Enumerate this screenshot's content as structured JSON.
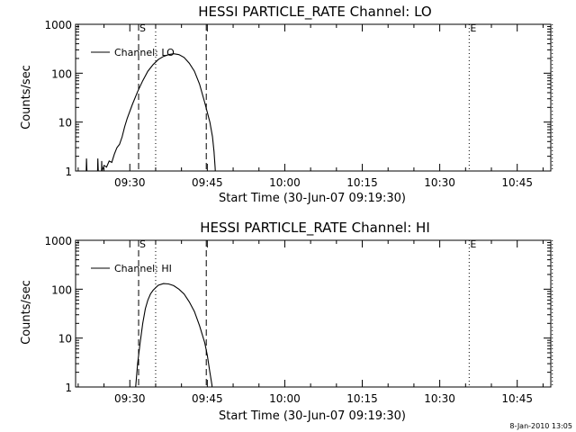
{
  "footer": {
    "timestamp": "8-Jan-2010 13:05"
  },
  "chart_data": [
    {
      "type": "line",
      "title": "HESSI PARTICLE_RATE Channel: LO",
      "xlabel": "Start Time (30-Jun-07 09:19:30)",
      "ylabel": "Counts/sec",
      "yscale": "log",
      "ylim": [
        1,
        1000
      ],
      "xlim_minutes": [
        0,
        92
      ],
      "x_ticks": [
        {
          "t": 10.5,
          "label": "09:30"
        },
        {
          "t": 25.5,
          "label": "09:45"
        },
        {
          "t": 40.5,
          "label": "10:00"
        },
        {
          "t": 55.5,
          "label": "10:15"
        },
        {
          "t": 70.5,
          "label": "10:30"
        },
        {
          "t": 85.5,
          "label": "10:45"
        }
      ],
      "y_ticks": [
        {
          "v": 1,
          "label": "1"
        },
        {
          "v": 10,
          "label": "10"
        },
        {
          "v": 100,
          "label": "100"
        },
        {
          "v": 1000,
          "label": "1000"
        }
      ],
      "markers": [
        {
          "t": 12.2,
          "style": "dashed",
          "label": "S"
        },
        {
          "t": 15.5,
          "style": "dotted",
          "label": ""
        },
        {
          "t": 25.3,
          "style": "dashed",
          "label": ""
        },
        {
          "t": 76.2,
          "style": "dotted",
          "label": "E"
        },
        {
          "t": 92.3,
          "style": "dotted",
          "label": ""
        }
      ],
      "legend": {
        "label": "Channel: LO",
        "position": "top-left"
      },
      "series": [
        {
          "name": "Channel: LO",
          "points": [
            [
              2.0,
              0.5
            ],
            [
              2.1,
              1.8
            ],
            [
              2.3,
              0.5
            ],
            [
              4.2,
              0.5
            ],
            [
              4.3,
              1.8
            ],
            [
              4.5,
              0.5
            ],
            [
              5.0,
              0.5
            ],
            [
              5.05,
              1.6
            ],
            [
              5.1,
              1.0
            ],
            [
              5.5,
              1.3
            ],
            [
              6.0,
              1.2
            ],
            [
              6.5,
              1.6
            ],
            [
              7.0,
              1.5
            ],
            [
              7.5,
              2.2
            ],
            [
              8.0,
              3.0
            ],
            [
              8.5,
              3.5
            ],
            [
              9.0,
              5.0
            ],
            [
              9.5,
              8.0
            ],
            [
              10.0,
              12
            ],
            [
              11.0,
              23
            ],
            [
              12.0,
              42
            ],
            [
              13.0,
              70
            ],
            [
              14.0,
              110
            ],
            [
              15.0,
              150
            ],
            [
              16.0,
              190
            ],
            [
              17.0,
              220
            ],
            [
              18.0,
              240
            ],
            [
              19.0,
              250
            ],
            [
              20.0,
              240
            ],
            [
              21.0,
              210
            ],
            [
              22.0,
              160
            ],
            [
              23.0,
              110
            ],
            [
              24.0,
              60
            ],
            [
              25.0,
              25
            ],
            [
              26.0,
              10
            ],
            [
              26.5,
              5
            ],
            [
              26.8,
              2.5
            ],
            [
              27.0,
              1.2
            ],
            [
              27.2,
              0.5
            ]
          ]
        }
      ]
    },
    {
      "type": "line",
      "title": "HESSI PARTICLE_RATE Channel: HI",
      "xlabel": "Start Time (30-Jun-07 09:19:30)",
      "ylabel": "Counts/sec",
      "yscale": "log",
      "ylim": [
        1,
        1000
      ],
      "xlim_minutes": [
        0,
        92
      ],
      "x_ticks": [
        {
          "t": 10.5,
          "label": "09:30"
        },
        {
          "t": 25.5,
          "label": "09:45"
        },
        {
          "t": 40.5,
          "label": "10:00"
        },
        {
          "t": 55.5,
          "label": "10:15"
        },
        {
          "t": 70.5,
          "label": "10:30"
        },
        {
          "t": 85.5,
          "label": "10:45"
        }
      ],
      "y_ticks": [
        {
          "v": 1,
          "label": "1"
        },
        {
          "v": 10,
          "label": "10"
        },
        {
          "v": 100,
          "label": "100"
        },
        {
          "v": 1000,
          "label": "1000"
        }
      ],
      "markers": [
        {
          "t": 12.2,
          "style": "dashed",
          "label": "S"
        },
        {
          "t": 15.5,
          "style": "dotted",
          "label": ""
        },
        {
          "t": 25.3,
          "style": "dashed",
          "label": ""
        },
        {
          "t": 76.2,
          "style": "dotted",
          "label": "E"
        },
        {
          "t": 92.3,
          "style": "dotted",
          "label": ""
        }
      ],
      "legend": {
        "label": "Channel: HI",
        "position": "top-left"
      },
      "series": [
        {
          "name": "Channel: HI",
          "points": [
            [
              11.4,
              0.5
            ],
            [
              11.7,
              1.2
            ],
            [
              12.0,
              3.0
            ],
            [
              12.5,
              8.0
            ],
            [
              13.0,
              20
            ],
            [
              13.5,
              40
            ],
            [
              14.0,
              60
            ],
            [
              14.5,
              80
            ],
            [
              15.0,
              95
            ],
            [
              16.0,
              120
            ],
            [
              17.0,
              130
            ],
            [
              18.0,
              128
            ],
            [
              19.0,
              118
            ],
            [
              20.0,
              100
            ],
            [
              21.0,
              80
            ],
            [
              22.0,
              55
            ],
            [
              23.0,
              35
            ],
            [
              24.0,
              18
            ],
            [
              25.0,
              8
            ],
            [
              25.5,
              4.5
            ],
            [
              26.0,
              2.0
            ],
            [
              26.4,
              1.1
            ],
            [
              26.6,
              0.5
            ]
          ]
        }
      ]
    }
  ]
}
